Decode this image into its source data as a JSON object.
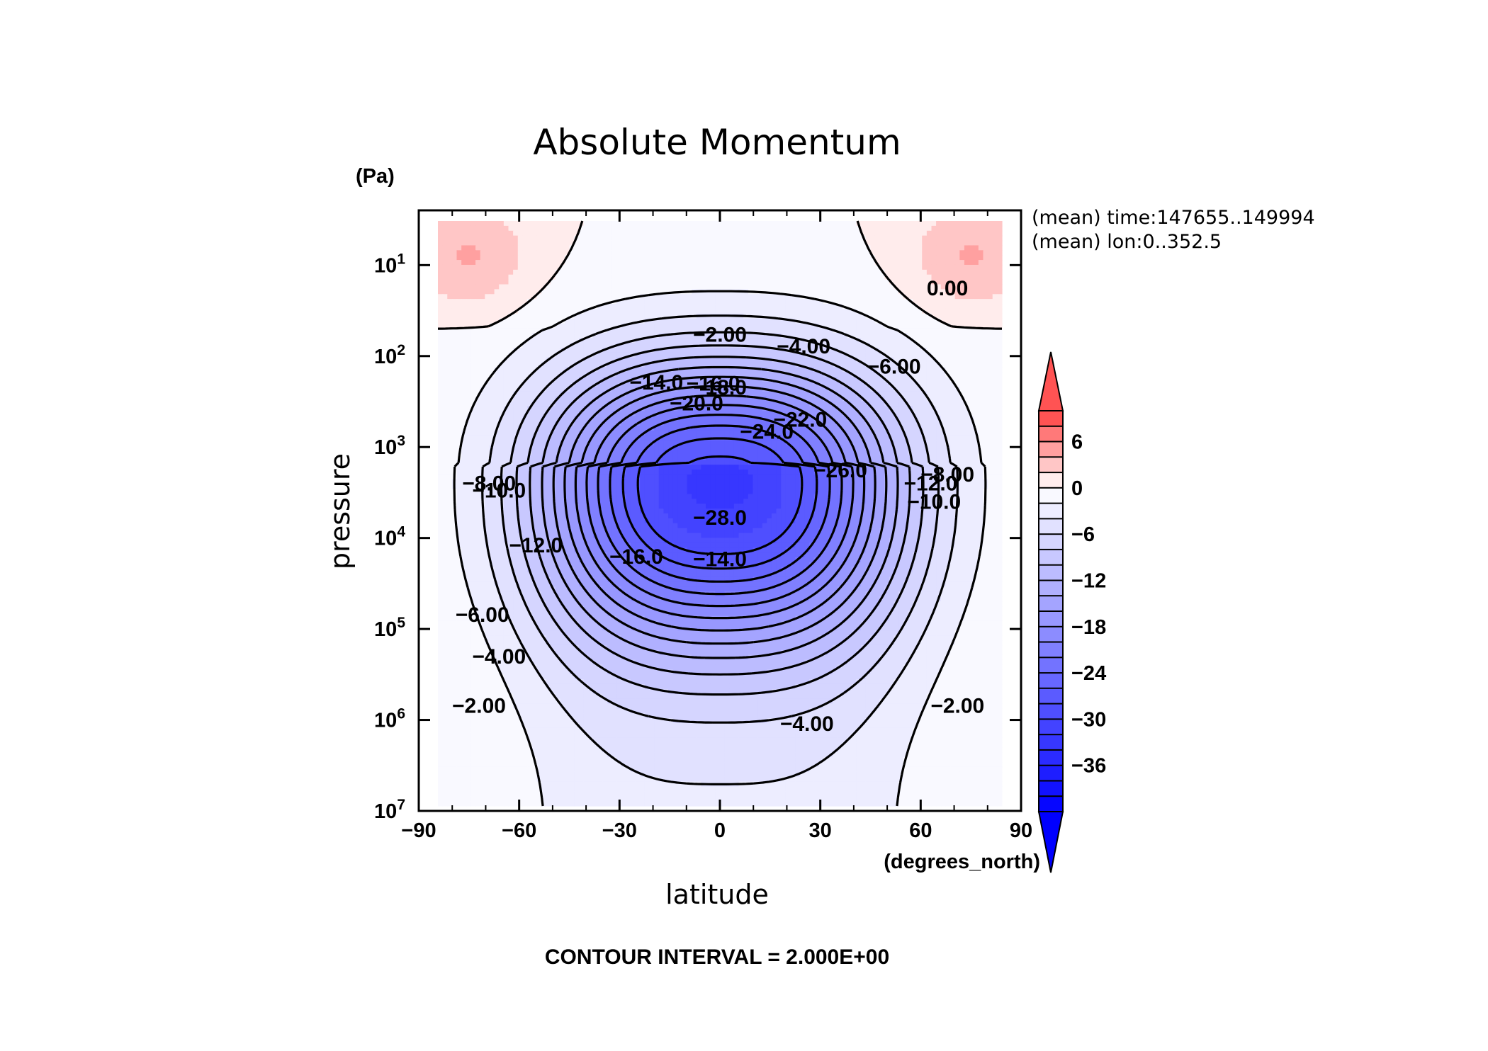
{
  "chart_data": {
    "type": "contour",
    "title": "Absolute Momentum",
    "xlabel": "latitude",
    "ylabel": "pressure",
    "x_unit": "(degrees_north)",
    "y_unit": "(Pa)",
    "xlim": [
      -90,
      90
    ],
    "ylim": [
      10000000,
      2.5
    ],
    "y_scale": "log",
    "y_reversed": true,
    "x_ticks": [
      "−90",
      "−60",
      "−30",
      "0",
      "30",
      "60",
      "90"
    ],
    "x_tick_values": [
      -90,
      -60,
      -30,
      0,
      30,
      60,
      90
    ],
    "y_tick_mantissa": "10",
    "y_ticks": [
      {
        "value": 10,
        "exp": "1"
      },
      {
        "value": 100,
        "exp": "2"
      },
      {
        "value": 1000,
        "exp": "3"
      },
      {
        "value": 10000,
        "exp": "4"
      },
      {
        "value": 100000,
        "exp": "5"
      },
      {
        "value": 1000000,
        "exp": "6"
      },
      {
        "value": 10000000,
        "exp": "7"
      }
    ],
    "annotations": [
      "(mean) time:147655..149994",
      "(mean) lon:0..352.5"
    ],
    "contour_interval_text": "CONTOUR INTERVAL = 2.000E+00",
    "contour_interval": 2,
    "colorbar": {
      "labels": [
        "6",
        "0",
        "−6",
        "−12",
        "−18",
        "−24",
        "−30",
        "−36"
      ],
      "label_values": [
        6,
        0,
        -6,
        -12,
        -18,
        -24,
        -30,
        -36
      ],
      "min": -42,
      "max": 10,
      "step": 2,
      "colors": {
        "neg_max": "#0000ff",
        "zero": "#ffffff",
        "pos_max": "#ff4040"
      }
    },
    "field": {
      "min": -29,
      "max": 1.5,
      "center_lat": 0,
      "center_pressure": 2500
    },
    "contour_labels": [
      {
        "text": "0.00",
        "lat": 68,
        "p": 18
      },
      {
        "text": "−2.00",
        "lat": 0,
        "p": 58
      },
      {
        "text": "−4.00",
        "lat": 25,
        "p": 78
      },
      {
        "text": "−6.00",
        "lat": 52,
        "p": 130
      },
      {
        "text": "−14.0",
        "lat": -19,
        "p": 195
      },
      {
        "text": "−16.0",
        "lat": -2,
        "p": 200
      },
      {
        "text": "−18.0",
        "lat": 0,
        "p": 220
      },
      {
        "text": "−20.0",
        "lat": -7,
        "p": 330
      },
      {
        "text": "−22.0",
        "lat": 24,
        "p": 500
      },
      {
        "text": "−24.0",
        "lat": 14,
        "p": 680
      },
      {
        "text": "−26.0",
        "lat": 36,
        "p": 1800
      },
      {
        "text": "−28.0",
        "lat": 0,
        "p": 6000
      },
      {
        "text": "−8.00",
        "lat": 68,
        "p": 2000
      },
      {
        "text": "−10.0",
        "lat": 64,
        "p": 4000
      },
      {
        "text": "−12.0",
        "lat": 63,
        "p": 2500
      },
      {
        "text": "−8.00",
        "lat": -69,
        "p": 2500
      },
      {
        "text": "−10.0",
        "lat": -66,
        "p": 3000
      },
      {
        "text": "−12.0",
        "lat": -55,
        "p": 12000
      },
      {
        "text": "−16.0",
        "lat": -25,
        "p": 16000
      },
      {
        "text": "−14.0",
        "lat": 0,
        "p": 17000
      },
      {
        "text": "−6.00",
        "lat": -71,
        "p": 70000
      },
      {
        "text": "−4.00",
        "lat": -66,
        "p": 200000
      },
      {
        "text": "−2.00",
        "lat": -72,
        "p": 700000
      },
      {
        "text": "−4.00",
        "lat": 26,
        "p": 1100000
      },
      {
        "text": "−2.00",
        "lat": 71,
        "p": 700000
      }
    ]
  }
}
